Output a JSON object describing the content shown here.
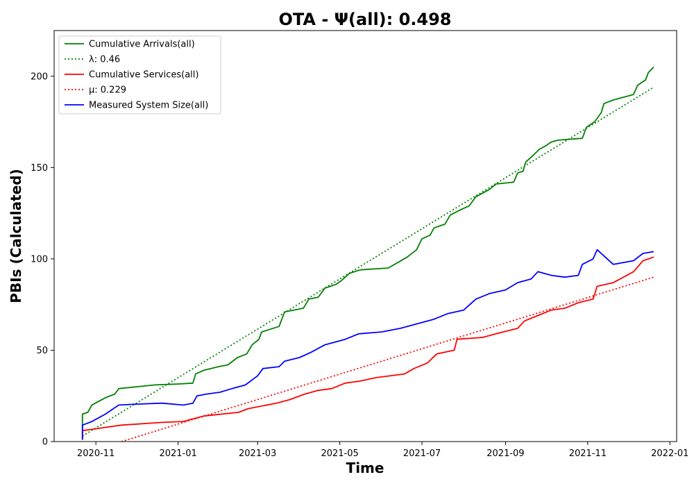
{
  "chart_data": {
    "type": "line",
    "title": "OTA -  Ψ(all): 0.498",
    "xlabel": "Time",
    "ylabel": "PBIs (Calculated)",
    "xlim": [
      "2020-10-01",
      "2022-01-06"
    ],
    "ylim": [
      0,
      225
    ],
    "x_ticks": [
      "2020-11",
      "2021-01",
      "2021-03",
      "2021-05",
      "2021-07",
      "2021-09",
      "2021-11",
      "2022-01"
    ],
    "y_ticks": [
      0,
      50,
      100,
      150,
      200
    ],
    "grid": false,
    "legend_position": "top-left",
    "series": [
      {
        "name": "Cumulative Arrivals(all)",
        "color": "#008000",
        "style": "solid",
        "points": [
          [
            "2020-10-22",
            1
          ],
          [
            "2020-10-22",
            15
          ],
          [
            "2020-10-26",
            16
          ],
          [
            "2020-10-29",
            20
          ],
          [
            "2020-11-03",
            22
          ],
          [
            "2020-11-08",
            24
          ],
          [
            "2020-11-15",
            26
          ],
          [
            "2020-11-18",
            29
          ],
          [
            "2020-12-01",
            30
          ],
          [
            "2020-12-15",
            31
          ],
          [
            "2021-01-01",
            31.5
          ],
          [
            "2021-01-12",
            32
          ],
          [
            "2021-01-14",
            37
          ],
          [
            "2021-01-20",
            39
          ],
          [
            "2021-01-31",
            41
          ],
          [
            "2021-02-07",
            42
          ],
          [
            "2021-02-14",
            46
          ],
          [
            "2021-02-21",
            48
          ],
          [
            "2021-02-25",
            53
          ],
          [
            "2021-03-02",
            56
          ],
          [
            "2021-03-04",
            60
          ],
          [
            "2021-03-17",
            63
          ],
          [
            "2021-03-21",
            71
          ],
          [
            "2021-03-28",
            72
          ],
          [
            "2021-04-04",
            73
          ],
          [
            "2021-04-08",
            78
          ],
          [
            "2021-04-15",
            79
          ],
          [
            "2021-04-20",
            84
          ],
          [
            "2021-04-28",
            86
          ],
          [
            "2021-05-02",
            88
          ],
          [
            "2021-05-08",
            92
          ],
          [
            "2021-05-16",
            94
          ],
          [
            "2021-06-06",
            95
          ],
          [
            "2021-06-13",
            98
          ],
          [
            "2021-06-20",
            101
          ],
          [
            "2021-06-27",
            105
          ],
          [
            "2021-07-01",
            111
          ],
          [
            "2021-07-07",
            113
          ],
          [
            "2021-07-10",
            117
          ],
          [
            "2021-07-18",
            119
          ],
          [
            "2021-07-22",
            124
          ],
          [
            "2021-07-30",
            127
          ],
          [
            "2021-08-05",
            129
          ],
          [
            "2021-08-10",
            134
          ],
          [
            "2021-08-20",
            138
          ],
          [
            "2021-08-25",
            141
          ],
          [
            "2021-09-07",
            142
          ],
          [
            "2021-09-10",
            147
          ],
          [
            "2021-09-14",
            148
          ],
          [
            "2021-09-16",
            153
          ],
          [
            "2021-09-22",
            157
          ],
          [
            "2021-09-26",
            160
          ],
          [
            "2021-10-01",
            162
          ],
          [
            "2021-10-05",
            164
          ],
          [
            "2021-10-10",
            165
          ],
          [
            "2021-10-28",
            166
          ],
          [
            "2021-10-31",
            172
          ],
          [
            "2021-11-06",
            175
          ],
          [
            "2021-11-11",
            180
          ],
          [
            "2021-11-13",
            185
          ],
          [
            "2021-11-20",
            187
          ],
          [
            "2021-12-05",
            190
          ],
          [
            "2021-12-08",
            195
          ],
          [
            "2021-12-14",
            198
          ],
          [
            "2021-12-16",
            202
          ],
          [
            "2021-12-20",
            205
          ]
        ]
      },
      {
        "name": "λ: 0.46",
        "color": "#008000",
        "style": "dotted",
        "points": [
          [
            "2020-10-22",
            3
          ],
          [
            "2021-12-20",
            194
          ]
        ]
      },
      {
        "name": "Cumulative Services(all)",
        "color": "#ff0000",
        "style": "solid",
        "points": [
          [
            "2020-10-22",
            1
          ],
          [
            "2020-10-22",
            6
          ],
          [
            "2020-11-01",
            7
          ],
          [
            "2020-11-10",
            8
          ],
          [
            "2020-11-20",
            9
          ],
          [
            "2020-12-20",
            10.5
          ],
          [
            "2021-01-05",
            11
          ],
          [
            "2021-01-10",
            12
          ],
          [
            "2021-01-20",
            14
          ],
          [
            "2021-02-15",
            16
          ],
          [
            "2021-02-22",
            18
          ],
          [
            "2021-03-15",
            21
          ],
          [
            "2021-03-25",
            23
          ],
          [
            "2021-04-05",
            26
          ],
          [
            "2021-04-15",
            28
          ],
          [
            "2021-04-25",
            29
          ],
          [
            "2021-05-05",
            32
          ],
          [
            "2021-05-15",
            33
          ],
          [
            "2021-05-28",
            35
          ],
          [
            "2021-06-18",
            37
          ],
          [
            "2021-06-25",
            40
          ],
          [
            "2021-07-05",
            43
          ],
          [
            "2021-07-12",
            48
          ],
          [
            "2021-07-25",
            50
          ],
          [
            "2021-07-27",
            56
          ],
          [
            "2021-08-15",
            57
          ],
          [
            "2021-08-25",
            59
          ],
          [
            "2021-09-10",
            62
          ],
          [
            "2021-09-15",
            66
          ],
          [
            "2021-09-25",
            69
          ],
          [
            "2021-10-05",
            72
          ],
          [
            "2021-10-15",
            73
          ],
          [
            "2021-10-25",
            76
          ],
          [
            "2021-11-05",
            78
          ],
          [
            "2021-11-08",
            85
          ],
          [
            "2021-11-20",
            87
          ],
          [
            "2021-12-05",
            93
          ],
          [
            "2021-12-12",
            99
          ],
          [
            "2021-12-20",
            101
          ]
        ]
      },
      {
        "name": "μ: 0.229",
        "color": "#ff0000",
        "style": "dotted",
        "points": [
          [
            "2020-11-20",
            0
          ],
          [
            "2021-12-20",
            90
          ]
        ]
      },
      {
        "name": "Measured System Size(all)",
        "color": "#0000ff",
        "style": "solid",
        "points": [
          [
            "2020-10-22",
            1
          ],
          [
            "2020-10-22",
            9
          ],
          [
            "2020-10-29",
            11
          ],
          [
            "2020-11-03",
            13
          ],
          [
            "2020-11-08",
            15
          ],
          [
            "2020-11-12",
            17
          ],
          [
            "2020-11-18",
            20
          ],
          [
            "2020-12-01",
            20.5
          ],
          [
            "2020-12-20",
            21
          ],
          [
            "2021-01-05",
            20
          ],
          [
            "2021-01-12",
            21
          ],
          [
            "2021-01-15",
            25
          ],
          [
            "2021-01-22",
            26
          ],
          [
            "2021-02-01",
            27
          ],
          [
            "2021-02-10",
            29
          ],
          [
            "2021-02-20",
            31
          ],
          [
            "2021-03-01",
            36
          ],
          [
            "2021-03-05",
            40
          ],
          [
            "2021-03-17",
            41
          ],
          [
            "2021-03-21",
            44
          ],
          [
            "2021-04-01",
            46
          ],
          [
            "2021-04-10",
            49
          ],
          [
            "2021-04-20",
            53
          ],
          [
            "2021-05-05",
            56
          ],
          [
            "2021-05-15",
            59
          ],
          [
            "2021-06-01",
            60
          ],
          [
            "2021-06-15",
            62
          ],
          [
            "2021-06-25",
            64
          ],
          [
            "2021-07-10",
            67
          ],
          [
            "2021-07-20",
            70
          ],
          [
            "2021-08-01",
            72
          ],
          [
            "2021-08-10",
            78
          ],
          [
            "2021-08-20",
            81
          ],
          [
            "2021-09-01",
            83
          ],
          [
            "2021-09-10",
            87
          ],
          [
            "2021-09-20",
            89
          ],
          [
            "2021-09-25",
            93
          ],
          [
            "2021-10-05",
            91
          ],
          [
            "2021-10-15",
            90
          ],
          [
            "2021-10-25",
            91
          ],
          [
            "2021-10-28",
            97
          ],
          [
            "2021-11-05",
            100
          ],
          [
            "2021-11-08",
            105
          ],
          [
            "2021-11-20",
            97
          ],
          [
            "2021-12-05",
            99
          ],
          [
            "2021-12-12",
            103
          ],
          [
            "2021-12-20",
            104
          ]
        ]
      }
    ]
  }
}
